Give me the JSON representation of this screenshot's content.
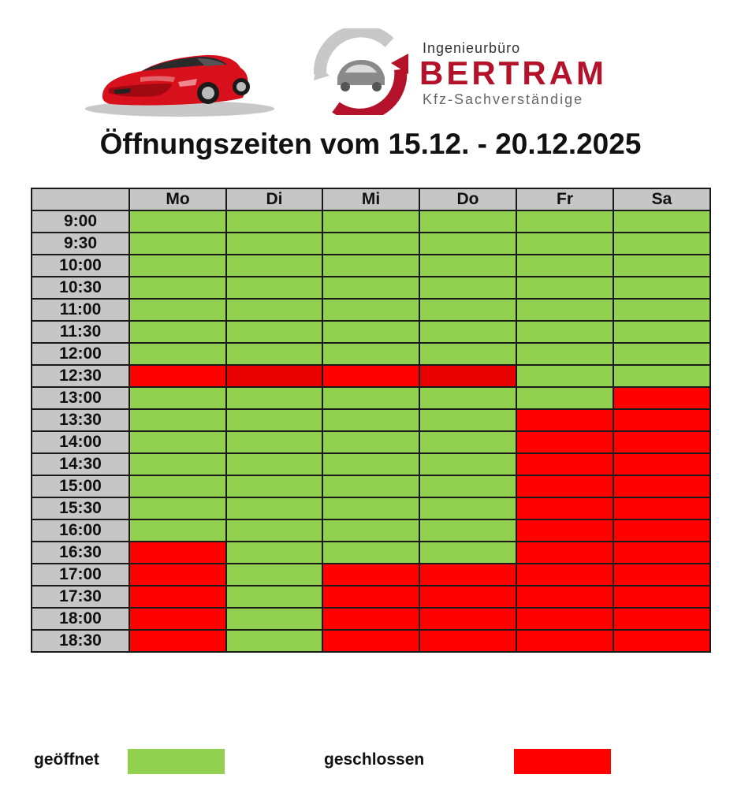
{
  "logo": {
    "small_text": "Ingenieurbüro",
    "big_text": "BERTRAM",
    "sub_text": "Kfz-Sachverständige",
    "brand_color": "#b3122a",
    "car_icon": "red-sports-car-icon"
  },
  "title": "Öffnungszeiten vom 15.12. - 20.12.2025",
  "schedule": {
    "days": [
      "Mo",
      "Di",
      "Mi",
      "Do",
      "Fr",
      "Sa"
    ],
    "rows": [
      {
        "time": "9:00",
        "status": [
          "open",
          "open",
          "open",
          "open",
          "open",
          "open"
        ]
      },
      {
        "time": "9:30",
        "status": [
          "open",
          "open",
          "open",
          "open",
          "open",
          "open"
        ]
      },
      {
        "time": "10:00",
        "status": [
          "open",
          "open",
          "open",
          "open",
          "open",
          "open"
        ]
      },
      {
        "time": "10:30",
        "status": [
          "open",
          "open",
          "open",
          "open",
          "open",
          "open"
        ]
      },
      {
        "time": "11:00",
        "status": [
          "open",
          "open",
          "open",
          "open",
          "open",
          "open"
        ]
      },
      {
        "time": "11:30",
        "status": [
          "open",
          "open",
          "open",
          "open",
          "open",
          "open"
        ]
      },
      {
        "time": "12:00",
        "status": [
          "open",
          "open",
          "open",
          "open",
          "open",
          "open"
        ]
      },
      {
        "time": "12:30",
        "status": [
          "closed",
          "closed-dark",
          "closed",
          "closed-dark",
          "open",
          "open"
        ]
      },
      {
        "time": "13:00",
        "status": [
          "open",
          "open",
          "open",
          "open",
          "open",
          "closed"
        ]
      },
      {
        "time": "13:30",
        "status": [
          "open",
          "open",
          "open",
          "open",
          "closed",
          "closed"
        ]
      },
      {
        "time": "14:00",
        "status": [
          "open",
          "open",
          "open",
          "open",
          "closed",
          "closed"
        ]
      },
      {
        "time": "14:30",
        "status": [
          "open",
          "open",
          "open",
          "open",
          "closed",
          "closed"
        ]
      },
      {
        "time": "15:00",
        "status": [
          "open",
          "open",
          "open",
          "open",
          "closed",
          "closed"
        ]
      },
      {
        "time": "15:30",
        "status": [
          "open",
          "open",
          "open",
          "open",
          "closed",
          "closed"
        ]
      },
      {
        "time": "16:00",
        "status": [
          "open",
          "open",
          "open",
          "open",
          "closed",
          "closed"
        ]
      },
      {
        "time": "16:30",
        "status": [
          "closed",
          "open",
          "open",
          "open",
          "closed",
          "closed"
        ]
      },
      {
        "time": "17:00",
        "status": [
          "closed",
          "open",
          "closed",
          "closed",
          "closed",
          "closed"
        ]
      },
      {
        "time": "17:30",
        "status": [
          "closed",
          "open",
          "closed",
          "closed",
          "closed",
          "closed"
        ]
      },
      {
        "time": "18:00",
        "status": [
          "closed",
          "open",
          "closed",
          "closed",
          "closed",
          "closed"
        ]
      },
      {
        "time": "18:30",
        "status": [
          "closed",
          "open",
          "closed",
          "closed",
          "closed",
          "closed"
        ]
      }
    ]
  },
  "legend": {
    "open_label": "geöffnet",
    "closed_label": "geschlossen",
    "open_color": "#92d050",
    "closed_color": "#ff0000"
  },
  "colors": {
    "open": "#92d050",
    "closed": "#ff0000",
    "closed_dark": "#e60000",
    "header_bg": "#c6c6c6"
  }
}
